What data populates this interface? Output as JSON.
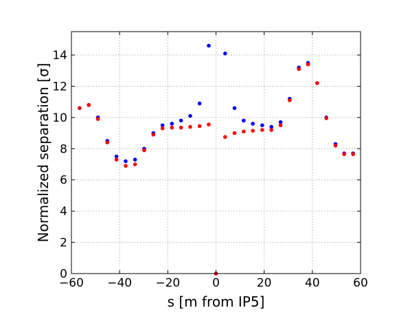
{
  "chart_data": {
    "type": "scatter",
    "title": "",
    "xlabel": "s [m from IP5]",
    "ylabel": "Normalized separation [σ]",
    "xlim": [
      -60,
      60
    ],
    "ylim": [
      0,
      15.5
    ],
    "xticks": [
      -60,
      -40,
      -20,
      0,
      20,
      40,
      60
    ],
    "xtick_labels": [
      "−60",
      "−40",
      "−20",
      "0",
      "20",
      "40",
      "60"
    ],
    "yticks": [
      0,
      2,
      4,
      6,
      8,
      10,
      12,
      14
    ],
    "ytick_labels": [
      "0",
      "2",
      "4",
      "6",
      "8",
      "10",
      "12",
      "14"
    ],
    "grid": true,
    "legend": "none",
    "series": [
      {
        "color": "#0000ff",
        "x": [
          -56.6,
          -52.8,
          -49.0,
          -45.1,
          -41.3,
          -37.5,
          -33.6,
          -29.8,
          -26.0,
          -22.2,
          -18.3,
          -14.5,
          -10.7,
          -6.8,
          -3.0,
          0.0,
          3.8,
          7.7,
          11.5,
          15.3,
          19.2,
          23.0,
          26.8,
          30.6,
          34.4,
          38.2,
          42.0,
          45.8,
          49.6,
          53.2,
          56.9
        ],
        "y": [
          10.6,
          10.8,
          10.0,
          8.5,
          7.5,
          7.2,
          7.3,
          8.0,
          9.0,
          9.5,
          9.6,
          9.8,
          10.1,
          10.9,
          14.6,
          0.0,
          14.1,
          10.6,
          9.8,
          9.6,
          9.5,
          9.4,
          9.7,
          11.2,
          13.2,
          13.5,
          12.2,
          10.0,
          8.3,
          7.7,
          7.7
        ]
      },
      {
        "color": "#ff0000",
        "x": [
          -56.6,
          -52.8,
          -49.0,
          -45.1,
          -41.3,
          -37.5,
          -33.6,
          -29.8,
          -26.0,
          -22.2,
          -18.3,
          -14.5,
          -10.7,
          -6.8,
          -3.0,
          0.0,
          3.8,
          7.7,
          11.5,
          15.3,
          19.2,
          23.0,
          26.8,
          30.6,
          34.4,
          38.2,
          42.0,
          45.8,
          49.6,
          53.2,
          56.9
        ],
        "y": [
          10.6,
          10.8,
          9.9,
          8.4,
          7.3,
          6.9,
          7.0,
          7.9,
          8.9,
          9.3,
          9.35,
          9.35,
          9.4,
          9.45,
          9.55,
          0.0,
          8.75,
          9.0,
          9.1,
          9.15,
          9.2,
          9.2,
          9.5,
          11.1,
          13.1,
          13.4,
          12.2,
          9.95,
          8.2,
          7.65,
          7.65
        ]
      }
    ]
  }
}
